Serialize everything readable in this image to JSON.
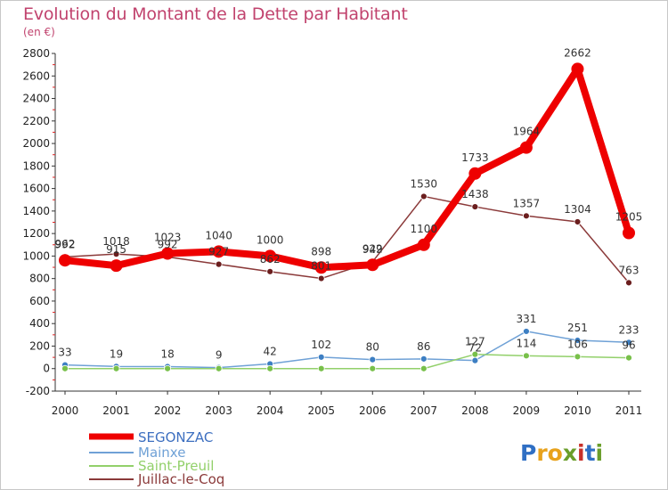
{
  "title": "Evolution du Montant de la Dette par Habitant",
  "subtitle": "(en €)",
  "brand": {
    "name": "Proxiti",
    "letters": [
      "P",
      "r",
      "o",
      "x",
      "i",
      "t",
      "i"
    ],
    "colors": [
      "#2f6fc4",
      "#e8a21c",
      "#e8a21c",
      "#6a9e2a",
      "#c8302a",
      "#2f6fc4",
      "#6a9e2a"
    ]
  },
  "chart_data": {
    "type": "line",
    "title": "Evolution du Montant de la Dette par Habitant",
    "subtitle": "(en €)",
    "xlabel": "",
    "ylabel": "",
    "x": [
      "2000",
      "2001",
      "2002",
      "2003",
      "2004",
      "2005",
      "2006",
      "2007",
      "2008",
      "2009",
      "2010",
      "2011"
    ],
    "ylim": [
      -200,
      2800
    ],
    "yticks": [
      "-200",
      "0",
      "200",
      "400",
      "600",
      "800",
      "1000",
      "1200",
      "1400",
      "1600",
      "1800",
      "2000",
      "2200",
      "2400",
      "2600",
      "2800"
    ],
    "grid": false,
    "legend_position": "bottom-left",
    "series": [
      {
        "name": "SEGONZAC",
        "color": "#ee0000",
        "marker": "#ee0000",
        "width": 8,
        "r": 7,
        "values": [
          962,
          915,
          1023,
          1040,
          1000,
          898,
          922,
          1100,
          1733,
          1964,
          2662,
          1205
        ],
        "labels": [
          "962",
          "915",
          "1023",
          "1040",
          "1000",
          "898",
          "922",
          "1100",
          "1733",
          "1964",
          "2662",
          "1205"
        ]
      },
      {
        "name": "Mainxe",
        "color": "#6fa1d6",
        "marker": "#3d7fc3",
        "width": 1.5,
        "r": 3.5,
        "values": [
          33,
          19,
          18,
          9,
          42,
          102,
          80,
          86,
          72,
          331,
          251,
          233
        ],
        "labels": [
          "33",
          "19",
          "18",
          "9",
          "42",
          "102",
          "80",
          "86",
          "72",
          "331",
          "251",
          "233"
        ]
      },
      {
        "name": "Saint-Preuil",
        "color": "#92d06a",
        "marker": "#78c04a",
        "width": 1.5,
        "r": 3.5,
        "values": [
          0,
          0,
          0,
          0,
          0,
          0,
          0,
          0,
          127,
          114,
          106,
          96
        ],
        "labels": [
          "",
          "",
          "",
          "",
          "",
          "",
          "",
          "",
          "127",
          "114",
          "106",
          "96"
        ]
      },
      {
        "name": "Juillac-le-Coq",
        "color": "#8b3a3a",
        "marker": "#6b1e1e",
        "width": 1.5,
        "r": 3.5,
        "values": [
          992,
          1018,
          992,
          927,
          862,
          801,
          949,
          1530,
          1438,
          1357,
          1304,
          763
        ],
        "labels": [
          "992",
          "1018",
          "992",
          "927",
          "862",
          "801",
          "949",
          "1530",
          "1438",
          "1357",
          "1304",
          "763"
        ]
      }
    ]
  }
}
